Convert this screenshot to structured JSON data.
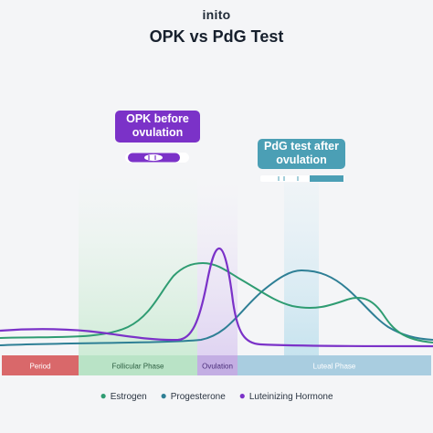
{
  "header": {
    "brand": "inito",
    "title": "OPK vs PdG Test"
  },
  "callouts": {
    "opk": "OPK before ovulation",
    "pdg": "PdG test after ovulation"
  },
  "phases": [
    {
      "label": "Period",
      "color": "#d9686a"
    },
    {
      "label": "Follicular Phase",
      "color": "#b9e3c6"
    },
    {
      "label": "Ovulation",
      "color": "#c3aee3"
    },
    {
      "label": "Luteal Phase",
      "color": "#a9cde0"
    }
  ],
  "legend": [
    {
      "label": "Estrogen",
      "color": "#2f9c72"
    },
    {
      "label": "Progesterone",
      "color": "#2e7f95"
    },
    {
      "label": "Luteinizing Hormone",
      "color": "#7b32c8"
    }
  ],
  "colors": {
    "estrogen": "#2f9c72",
    "progesterone": "#2e7f95",
    "lh": "#7b32c8",
    "opk_highlight": "#d8f0de",
    "pdg_highlight": "#cfe7f1",
    "opk_strip": "#7b32c8",
    "pdg_strip": "#4b9fb5"
  }
}
